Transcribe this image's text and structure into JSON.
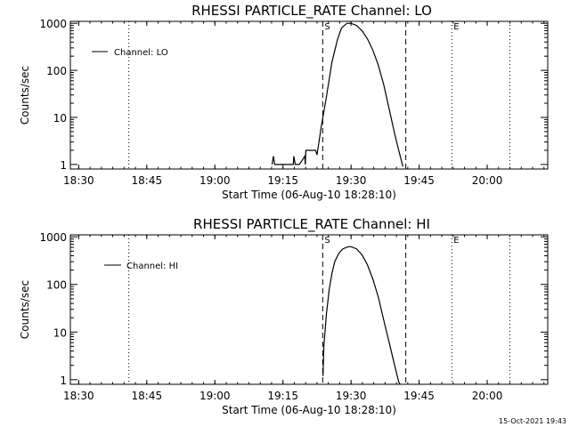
{
  "footer": {
    "timestamp": "15-Oct-2021 19:43"
  },
  "chart_data": [
    {
      "type": "line",
      "title": "RHESSI PARTICLE_RATE Channel: LO",
      "xlabel": "Start Time (06-Aug-10 18:28:10)",
      "ylabel": "Counts/sec",
      "yscale": "log",
      "xlim": [
        18.4694,
        20.2222
      ],
      "ylim": [
        0.8,
        1100
      ],
      "x_ticks": [
        18.5,
        18.75,
        19.0,
        19.25,
        19.5,
        19.75,
        20.0
      ],
      "x_tick_labels": [
        "18:30",
        "18:45",
        "19:00",
        "19:15",
        "19:30",
        "19:45",
        "20:00"
      ],
      "y_ticks": [
        1,
        10,
        100,
        1000
      ],
      "y_tick_labels": [
        "1",
        "10",
        "100",
        "1000"
      ],
      "grid": false,
      "legend_position": "top-left",
      "series": [
        {
          "name": "Channel: LO",
          "x": [
            19.21,
            19.215,
            19.22,
            19.288,
            19.29,
            19.295,
            19.31,
            19.33,
            19.332,
            19.334,
            19.336,
            19.37,
            19.375,
            19.38,
            19.39,
            19.41,
            19.43,
            19.45,
            19.465,
            19.485,
            19.5,
            19.52,
            19.54,
            19.56,
            19.58,
            19.6,
            19.62,
            19.64,
            19.66,
            19.675,
            19.685,
            19.69
          ],
          "y": [
            1,
            1.5,
            1,
            1,
            1.5,
            1,
            1,
            1.5,
            1,
            2,
            2,
            2,
            1.6,
            2.5,
            6,
            28,
            150,
            450,
            800,
            1000,
            1000,
            900,
            700,
            470,
            270,
            130,
            50,
            15,
            4.5,
            2,
            1.2,
            0.9
          ]
        }
      ],
      "markers": [
        {
          "label": "S",
          "x": 19.396,
          "style": "dashed"
        },
        {
          "label": "",
          "x": 19.701,
          "style": "dashed"
        },
        {
          "label": "E",
          "x": 19.87,
          "style": "dotted"
        },
        {
          "label": "",
          "x": 18.684,
          "style": "dotted"
        },
        {
          "label": "",
          "x": 20.083,
          "style": "dotted"
        }
      ]
    },
    {
      "type": "line",
      "title": "RHESSI PARTICLE_RATE Channel: HI",
      "xlabel": "Start Time (06-Aug-10 18:28:10)",
      "ylabel": "Counts/sec",
      "yscale": "log",
      "xlim": [
        18.4694,
        20.2222
      ],
      "ylim": [
        0.8,
        1100
      ],
      "x_ticks": [
        18.5,
        18.75,
        19.0,
        19.25,
        19.5,
        19.75,
        20.0
      ],
      "x_tick_labels": [
        "18:30",
        "18:45",
        "19:00",
        "19:15",
        "19:30",
        "19:45",
        "20:00"
      ],
      "y_ticks": [
        1,
        10,
        100,
        1000
      ],
      "y_tick_labels": [
        "1",
        "10",
        "100",
        "1000"
      ],
      "grid": false,
      "legend_position": "top-left",
      "series": [
        {
          "name": "Channel: HI",
          "x": [
            19.397,
            19.4,
            19.41,
            19.42,
            19.43,
            19.44,
            19.455,
            19.47,
            19.49,
            19.5,
            19.52,
            19.54,
            19.56,
            19.58,
            19.6,
            19.62,
            19.64,
            19.66,
            19.675,
            19.68
          ],
          "y": [
            1.2,
            5,
            25,
            80,
            170,
            300,
            450,
            560,
            620,
            620,
            560,
            420,
            260,
            130,
            55,
            18,
            6,
            2,
            0.9,
            0.8
          ]
        }
      ],
      "markers": [
        {
          "label": "S",
          "x": 19.396,
          "style": "dashed"
        },
        {
          "label": "",
          "x": 19.701,
          "style": "dashed"
        },
        {
          "label": "E",
          "x": 19.87,
          "style": "dotted"
        },
        {
          "label": "",
          "x": 18.684,
          "style": "dotted"
        },
        {
          "label": "",
          "x": 20.083,
          "style": "dotted"
        }
      ]
    }
  ]
}
